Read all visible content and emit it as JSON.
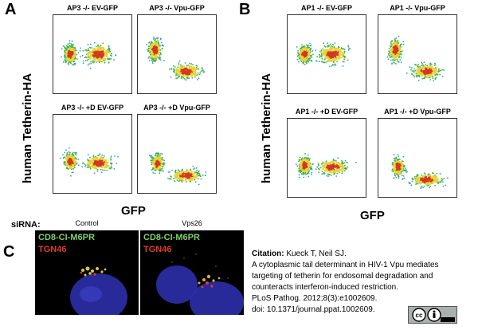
{
  "panels": {
    "A": {
      "letter": "A",
      "ylabel": "human Tetherin-HA",
      "xlabel": "GFP",
      "plots": [
        {
          "title": "AP3 -/- EV-GFP",
          "pattern": "ev"
        },
        {
          "title": "AP3 -/- Vpu-GFP",
          "pattern": "vpu"
        },
        {
          "title": "AP3 -/- +D EV-GFP",
          "pattern": "evlow"
        },
        {
          "title": "AP3 -/- +D Vpu-GFP",
          "pattern": "vpulow"
        }
      ]
    },
    "B": {
      "letter": "B",
      "ylabel": "human Tetherin-HA",
      "xlabel": "GFP",
      "plots": [
        {
          "title": "AP1 -/- EV-GFP",
          "pattern": "ev"
        },
        {
          "title": "AP1 -/- Vpu-GFP",
          "pattern": "vpu"
        },
        {
          "title": "AP1 -/- +D EV-GFP",
          "pattern": "evlow"
        },
        {
          "title": "AP1 -/- +D Vpu-GFP",
          "pattern": "vpulow"
        }
      ]
    },
    "C": {
      "letter": "C",
      "sirna_label": "siRNA:",
      "conditions": [
        {
          "label": "Control",
          "green": "CD8-CI-M6PR",
          "red": "TGN46"
        },
        {
          "label": "Vps26",
          "green": "CD8-CI-M6PR",
          "red": "TGN46"
        }
      ]
    }
  },
  "citation": {
    "label": "Citation:",
    "authors": "Kueck T, Neil SJ.",
    "title": "A cytoplasmic tail determinant in HIV-1 Vpu mediates targeting of tetherin for endosomal degradation and counteracts interferon-induced restriction.",
    "journal": "PLoS Pathog. 2012;8(3):e1002609.",
    "doi": "doi: 10.1371/journal.ppat.1002609."
  },
  "license_badge": {
    "icon": "cc-by-icon"
  },
  "colors": {
    "nucleus": "#2b2fa8",
    "green_stain": "#7fd16a",
    "red_stain": "#e03b2e"
  }
}
